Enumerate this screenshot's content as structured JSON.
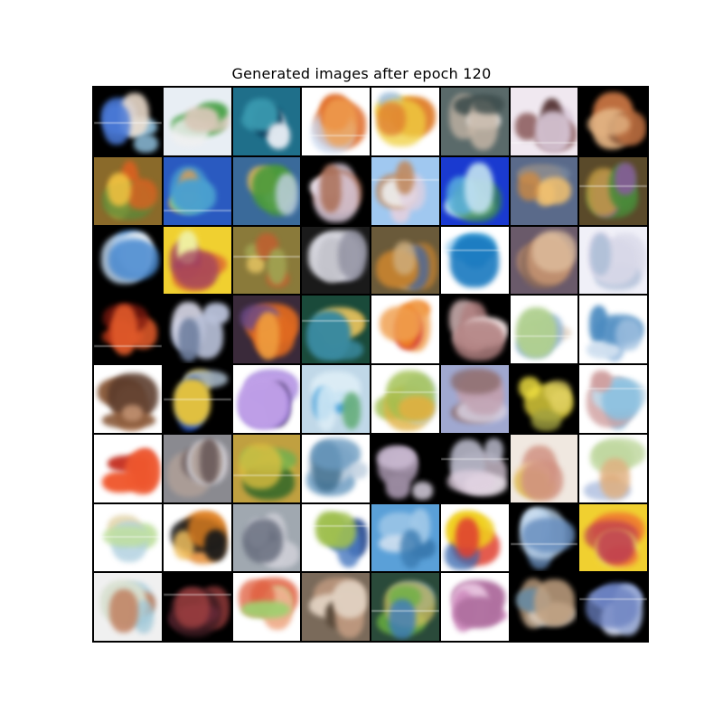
{
  "title": "Generated images after epoch 120",
  "grid": {
    "rows": 8,
    "cols": 8,
    "cells": [
      {
        "bg": "#000000",
        "c": [
          "#4a7ad8",
          "#9bd0f0",
          "#f0e0d0"
        ]
      },
      {
        "bg": "#e8eef4",
        "c": [
          "#4aa34a",
          "#d8c8b8",
          "#f0f0f0"
        ]
      },
      {
        "bg": "#1f6f8a",
        "c": [
          "#3a9ab0",
          "#e0e8f0",
          "#0a3a5a"
        ]
      },
      {
        "bg": "#ffffff",
        "c": [
          "#e07030",
          "#f0a050",
          "#c8d8f0"
        ]
      },
      {
        "bg": "#ffffff",
        "c": [
          "#f0d040",
          "#e08030",
          "#a0c0e0"
        ]
      },
      {
        "bg": "#5a6a6a",
        "c": [
          "#c8b8a8",
          "#3a4a4a",
          "#e0e0e0"
        ]
      },
      {
        "bg": "#f0e8f0",
        "c": [
          "#8a5a5a",
          "#d8c8d8",
          "#5a3a3a"
        ]
      },
      {
        "bg": "#000000",
        "c": [
          "#c07040",
          "#e0b080",
          "#7a4a30"
        ]
      },
      {
        "bg": "#8a6a2a",
        "c": [
          "#e06020",
          "#f0c040",
          "#5a8a3a"
        ]
      },
      {
        "bg": "#2a5ac0",
        "c": [
          "#e0a050",
          "#4aa0d0",
          "#8ad080"
        ]
      },
      {
        "bg": "#3a6a9a",
        "c": [
          "#4a9a3a",
          "#c0d0e0",
          "#d0b060"
        ]
      },
      {
        "bg": "#000000",
        "c": [
          "#d8c8d8",
          "#a86a50",
          "#f0e8f0"
        ]
      },
      {
        "bg": "#a0c8f0",
        "c": [
          "#e0d0e0",
          "#c08a60",
          "#f0f0f0"
        ]
      },
      {
        "bg": "#1a3ad0",
        "c": [
          "#5ab0e0",
          "#c0e0f0",
          "#3a8a4a"
        ]
      },
      {
        "bg": "#5a6a8a",
        "c": [
          "#d08a40",
          "#f0c070",
          "#7a8aa0"
        ]
      },
      {
        "bg": "#5a4a2a",
        "c": [
          "#4a8a3a",
          "#8a5aa0",
          "#c09a40"
        ]
      },
      {
        "bg": "#000000",
        "c": [
          "#c0d8f0",
          "#4a8ad0",
          "#f0f0f0"
        ]
      },
      {
        "bg": "#f0d030",
        "c": [
          "#e07030",
          "#a04060",
          "#f0f0a0"
        ]
      },
      {
        "bg": "#8a7a3a",
        "c": [
          "#c06030",
          "#a0a050",
          "#e0c060"
        ]
      },
      {
        "bg": "#1a1a1a",
        "c": [
          "#c0c0c8",
          "#9090a0",
          "#e0e0e8"
        ]
      },
      {
        "bg": "#6a5a3a",
        "c": [
          "#c08030",
          "#d0b080",
          "#5a6a8a"
        ]
      },
      {
        "bg": "#ffffff",
        "c": [
          "#3aa0d8",
          "#1a7ac0",
          "#a0d0f0"
        ]
      },
      {
        "bg": "#6a5a6a",
        "c": [
          "#c09070",
          "#e0c0a0",
          "#8a6a5a"
        ]
      },
      {
        "bg": "#f0f0f8",
        "c": [
          "#d8d8e8",
          "#b0c0d8",
          "#e8e0f0"
        ]
      },
      {
        "bg": "#000000",
        "c": [
          "#c03a1a",
          "#e05a2a",
          "#801a10"
        ]
      },
      {
        "bg": "#000000",
        "c": [
          "#b8c0d8",
          "#7080a0",
          "#e0e0f0"
        ]
      },
      {
        "bg": "#3a2a3a",
        "c": [
          "#e06a20",
          "#f0a040",
          "#6a4a8a"
        ]
      },
      {
        "bg": "#1a4a3a",
        "c": [
          "#c0a040",
          "#3a8aa0",
          "#e0c060"
        ]
      },
      {
        "bg": "#ffffff",
        "c": [
          "#f08020",
          "#f0a050",
          "#d03030"
        ]
      },
      {
        "bg": "#000000",
        "c": [
          "#e0c0c0",
          "#b08080",
          "#f0e0e0"
        ]
      },
      {
        "bg": "#ffffff",
        "c": [
          "#8ab0d0",
          "#b0d090",
          "#e0d0c0"
        ]
      },
      {
        "bg": "#ffffff",
        "c": [
          "#4a8ac0",
          "#a0c0e0",
          "#d0e0f0"
        ]
      },
      {
        "bg": "#ffffff",
        "c": [
          "#8a5a3a",
          "#c09070",
          "#5a3a2a"
        ]
      },
      {
        "bg": "#000000",
        "c": [
          "#2a5ad0",
          "#e0c040",
          "#a0b0c0"
        ]
      },
      {
        "bg": "#ffffff",
        "c": [
          "#9a7ad8",
          "#c0a0e8",
          "#3a2a5a"
        ]
      },
      {
        "bg": "#c0d8e8",
        "c": [
          "#3a9ad8",
          "#e0f0f8",
          "#6ab080"
        ]
      },
      {
        "bg": "#ffffff",
        "c": [
          "#a0c050",
          "#e0b040",
          "#c0d8e0"
        ]
      },
      {
        "bg": "#a0a8d0",
        "c": [
          "#c0a0b0",
          "#8a6a6a",
          "#d8d0e0"
        ]
      },
      {
        "bg": "#000000",
        "c": [
          "#f0e040",
          "#e0d060",
          "#a0a040"
        ]
      },
      {
        "bg": "#ffffff",
        "c": [
          "#8ac0e0",
          "#d0a0a0",
          "#c0d8e8"
        ]
      },
      {
        "bg": "#ffffff",
        "c": [
          "#e03a1a",
          "#f05a30",
          "#c02010"
        ]
      },
      {
        "bg": "#8a8a90",
        "c": [
          "#b0a098",
          "#6a5a5a",
          "#d0d0d8"
        ]
      },
      {
        "bg": "#c0a040",
        "c": [
          "#6ab050",
          "#e0c040",
          "#3a6a2a"
        ]
      },
      {
        "bg": "#ffffff",
        "c": [
          "#6a9ac0",
          "#c0d0e0",
          "#3a6a8a"
        ]
      },
      {
        "bg": "#000000",
        "c": [
          "#d0c0d8",
          "#9a8aa0",
          "#e8e0f0"
        ]
      },
      {
        "bg": "#000000",
        "c": [
          "#e0d0e0",
          "#b0b0c0",
          "#f0e8f0"
        ]
      },
      {
        "bg": "#f0e8e0",
        "c": [
          "#e0c060",
          "#d09080",
          "#f0d0a0"
        ]
      },
      {
        "bg": "#ffffff",
        "c": [
          "#c0d8a0",
          "#e0b080",
          "#b0c0e0"
        ]
      },
      {
        "bg": "#ffffff",
        "c": [
          "#b0d0e0",
          "#c0e0a0",
          "#e0d0a0"
        ]
      },
      {
        "bg": "#ffffff",
        "c": [
          "#e08020",
          "#1a1a1a",
          "#f0c060"
        ]
      },
      {
        "bg": "#a0a8b0",
        "c": [
          "#d0d0d8",
          "#6a7080",
          "#e8e8f0"
        ]
      },
      {
        "bg": "#ffffff",
        "c": [
          "#4a7ac0",
          "#a0c050",
          "#3a5a9a"
        ]
      },
      {
        "bg": "#5aa0d8",
        "c": [
          "#a0c8e8",
          "#3a7ab0",
          "#d0e0f0"
        ]
      },
      {
        "bg": "#ffffff",
        "c": [
          "#f0d020",
          "#e04030",
          "#3a6ab0"
        ]
      },
      {
        "bg": "#000000",
        "c": [
          "#c0d8f0",
          "#6a90c0",
          "#f0f0f0"
        ]
      },
      {
        "bg": "#f0d030",
        "c": [
          "#f08030",
          "#c04050",
          "#f0e060"
        ]
      },
      {
        "bg": "#f0f0f0",
        "c": [
          "#a0c8d8",
          "#c08060",
          "#d8e0d0"
        ]
      },
      {
        "bg": "#000000",
        "c": [
          "#6a2a3a",
          "#a04040",
          "#3a1a20"
        ]
      },
      {
        "bg": "#ffffff",
        "c": [
          "#e06040",
          "#a0d070",
          "#f0b090"
        ]
      },
      {
        "bg": "#7a6a5a",
        "c": [
          "#c09a80",
          "#e0d0c0",
          "#5a4a3a"
        ]
      },
      {
        "bg": "#2a4a3a",
        "c": [
          "#6ab040",
          "#3a7ac0",
          "#d0c060"
        ]
      },
      {
        "bg": "#ffffff",
        "c": [
          "#d090c0",
          "#b070a0",
          "#f0d0e8"
        ]
      },
      {
        "bg": "#000000",
        "c": [
          "#6a8aa0",
          "#c0a080",
          "#e0d0c0"
        ]
      },
      {
        "bg": "#000000",
        "c": [
          "#a0b0d8",
          "#6a80c0",
          "#d0d8f0"
        ]
      }
    ]
  }
}
